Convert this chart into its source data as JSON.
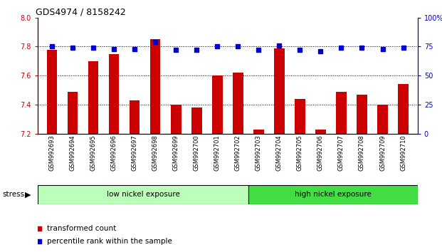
{
  "title": "GDS4974 / 8158242",
  "samples": [
    "GSM992693",
    "GSM992694",
    "GSM992695",
    "GSM992696",
    "GSM992697",
    "GSM992698",
    "GSM992699",
    "GSM992700",
    "GSM992701",
    "GSM992702",
    "GSM992703",
    "GSM992704",
    "GSM992705",
    "GSM992706",
    "GSM992707",
    "GSM992708",
    "GSM992709",
    "GSM992710"
  ],
  "red_values": [
    7.78,
    7.49,
    7.7,
    7.75,
    7.43,
    7.85,
    7.4,
    7.38,
    7.6,
    7.62,
    7.23,
    7.79,
    7.44,
    7.23,
    7.49,
    7.47,
    7.4,
    7.54
  ],
  "blue_values": [
    75,
    74,
    74,
    73,
    73,
    79,
    72,
    72,
    75,
    75,
    72,
    76,
    72,
    71,
    74,
    74,
    73,
    74
  ],
  "ylim_left": [
    7.2,
    8.0
  ],
  "ylim_right": [
    0,
    100
  ],
  "yticks_left": [
    7.2,
    7.4,
    7.6,
    7.8,
    8.0
  ],
  "yticks_right": [
    0,
    25,
    50,
    75,
    100
  ],
  "ytick_labels_right": [
    "0",
    "25",
    "50",
    "75",
    "100%"
  ],
  "red_color": "#cc0000",
  "blue_color": "#0000cc",
  "group1_label": "low nickel exposure",
  "group2_label": "high nickel exposure",
  "group1_color": "#bbffbb",
  "group2_color": "#44dd44",
  "group1_count": 10,
  "bar_width": 0.5,
  "blue_marker_size": 4,
  "legend_red": "transformed count",
  "legend_blue": "percentile rank within the sample",
  "stress_label": "stress",
  "tick_color_left": "#cc0000",
  "tick_color_right": "#0000cc",
  "grid_color": "#000000",
  "ytick_label_size": 7,
  "xtick_label_size": 6
}
